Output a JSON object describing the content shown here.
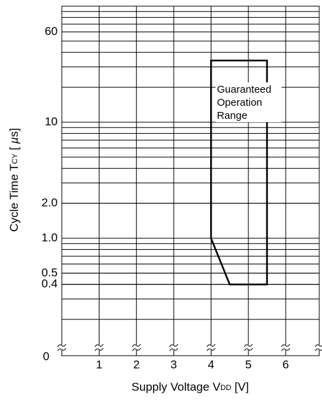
{
  "chart_data": {
    "type": "line",
    "x_label": [
      "Supply Voltage V",
      "DD",
      " [V]"
    ],
    "y_label": [
      "Cycle Time  T",
      "CY",
      " [ ",
      "µ",
      "s]"
    ],
    "x": [
      4,
      4,
      5.5,
      5.5,
      4.5,
      4
    ],
    "series": [
      {
        "name": null,
        "color": "#000000",
        "values": [
          1,
          34,
          34,
          0.4,
          0.4,
          1
        ]
      }
    ],
    "annotation": [
      "Guaranteed",
      "Operation",
      "Range"
    ],
    "xlim": [
      0,
      6.9
    ],
    "xticks": [
      1,
      2,
      3,
      4,
      5,
      6
    ],
    "ylim": [
      0.15,
      100
    ],
    "log_y": true,
    "yticks": [
      60,
      10,
      {
        "value": 2,
        "label": "2.0"
      },
      {
        "value": 1,
        "label": "1.0"
      },
      0.5,
      0.4
    ],
    "y_break_label": "0",
    "grid": true
  }
}
